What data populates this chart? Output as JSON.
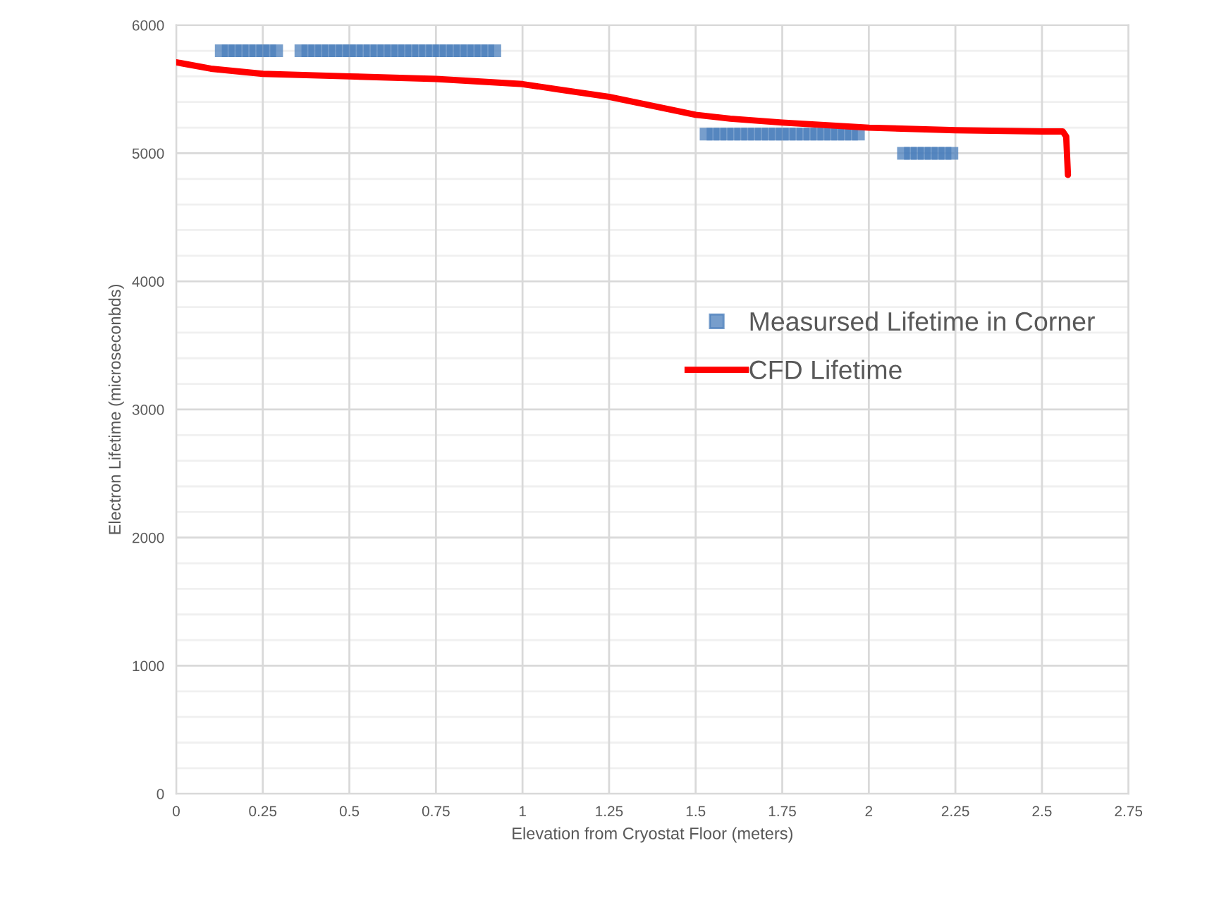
{
  "chart_data": {
    "type": "scatter",
    "xlabel": "Elevation from Cryostat Floor (meters)",
    "ylabel": "Electron Lifetime (microseconbds)",
    "series": [
      {
        "name": "Measursed Lifetime in Corner",
        "color": "#4a7ebb",
        "marker": "square",
        "x": [
          0.13,
          0.15,
          0.17,
          0.19,
          0.21,
          0.23,
          0.25,
          0.27,
          0.29,
          0.36,
          0.38,
          0.4,
          0.42,
          0.44,
          0.46,
          0.48,
          0.5,
          0.52,
          0.54,
          0.56,
          0.58,
          0.6,
          0.62,
          0.64,
          0.66,
          0.68,
          0.7,
          0.72,
          0.74,
          0.76,
          0.78,
          0.8,
          0.82,
          0.84,
          0.86,
          0.88,
          0.9,
          0.92,
          1.53,
          1.55,
          1.57,
          1.59,
          1.61,
          1.63,
          1.65,
          1.67,
          1.69,
          1.71,
          1.73,
          1.75,
          1.77,
          1.79,
          1.81,
          1.83,
          1.85,
          1.87,
          1.89,
          1.91,
          1.93,
          1.95,
          1.97,
          2.1,
          2.12,
          2.14,
          2.16,
          2.18,
          2.2,
          2.22,
          2.24
        ],
        "values": [
          5800,
          5800,
          5800,
          5800,
          5800,
          5800,
          5800,
          5800,
          5800,
          5800,
          5800,
          5800,
          5800,
          5800,
          5800,
          5800,
          5800,
          5800,
          5800,
          5800,
          5800,
          5800,
          5800,
          5800,
          5800,
          5800,
          5800,
          5800,
          5800,
          5800,
          5800,
          5800,
          5800,
          5800,
          5800,
          5800,
          5800,
          5800,
          5150,
          5150,
          5150,
          5150,
          5150,
          5150,
          5150,
          5150,
          5150,
          5150,
          5150,
          5150,
          5150,
          5150,
          5150,
          5150,
          5150,
          5150,
          5150,
          5150,
          5150,
          5150,
          5150,
          5000,
          5000,
          5000,
          5000,
          5000,
          5000,
          5000,
          5000
        ]
      },
      {
        "name": "CFD Lifetime",
        "type": "line",
        "color": "#ff0000",
        "marker": "none",
        "line_style": "solid",
        "x": [
          0,
          0.1,
          0.25,
          0.5,
          0.75,
          1.0,
          1.1,
          1.25,
          1.375,
          1.5,
          1.6,
          1.75,
          2.0,
          2.25,
          2.5,
          2.56,
          2.57,
          2.575
        ],
        "values": [
          5710,
          5660,
          5620,
          5600,
          5580,
          5540,
          5500,
          5440,
          5370,
          5300,
          5270,
          5240,
          5200,
          5180,
          5170,
          5170,
          5130,
          4830
        ]
      }
    ],
    "xlim": [
      0,
      2.75
    ],
    "xticks": [
      0,
      0.25,
      0.5,
      0.75,
      1,
      1.25,
      1.5,
      1.75,
      2,
      2.25,
      2.5,
      2.75
    ],
    "ylim": [
      0,
      6000
    ],
    "yticks": [
      0,
      1000,
      2000,
      3000,
      4000,
      5000,
      6000
    ],
    "grid": true,
    "legend": "center right"
  }
}
